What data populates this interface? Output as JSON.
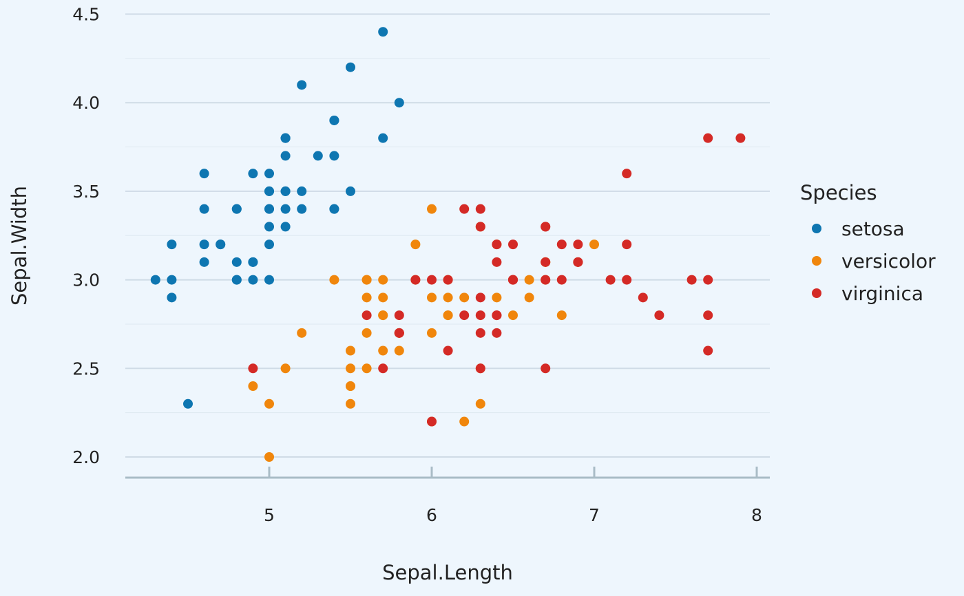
{
  "chart_data": {
    "type": "scatter",
    "xlabel": "Sepal.Length",
    "ylabel": "Sepal.Width",
    "xlim": [
      4.2,
      8.1
    ],
    "ylim": [
      1.9,
      4.6
    ],
    "xticks": [
      "5",
      "6",
      "7",
      "8"
    ],
    "yticks": [
      "2.0",
      "2.5",
      "3.0",
      "3.5",
      "4.0",
      "4.5"
    ],
    "grid": true,
    "legend": {
      "title": "Species",
      "position": "right"
    },
    "series": [
      {
        "name": "setosa",
        "color": "#0e76b1",
        "points": [
          [
            5.1,
            3.5
          ],
          [
            4.9,
            3.0
          ],
          [
            4.7,
            3.2
          ],
          [
            4.6,
            3.1
          ],
          [
            5.0,
            3.6
          ],
          [
            5.4,
            3.9
          ],
          [
            4.6,
            3.4
          ],
          [
            5.0,
            3.4
          ],
          [
            4.4,
            2.9
          ],
          [
            4.9,
            3.1
          ],
          [
            5.4,
            3.7
          ],
          [
            4.8,
            3.4
          ],
          [
            4.8,
            3.0
          ],
          [
            4.3,
            3.0
          ],
          [
            5.8,
            4.0
          ],
          [
            5.7,
            4.4
          ],
          [
            5.4,
            3.9
          ],
          [
            5.1,
            3.5
          ],
          [
            5.7,
            3.8
          ],
          [
            5.1,
            3.8
          ],
          [
            5.4,
            3.4
          ],
          [
            5.1,
            3.7
          ],
          [
            4.6,
            3.6
          ],
          [
            5.1,
            3.3
          ],
          [
            4.8,
            3.4
          ],
          [
            5.0,
            3.0
          ],
          [
            5.0,
            3.4
          ],
          [
            5.2,
            3.5
          ],
          [
            5.2,
            3.4
          ],
          [
            4.7,
            3.2
          ],
          [
            4.8,
            3.1
          ],
          [
            5.4,
            3.4
          ],
          [
            5.2,
            4.1
          ],
          [
            5.5,
            4.2
          ],
          [
            4.9,
            3.1
          ],
          [
            5.0,
            3.2
          ],
          [
            5.5,
            3.5
          ],
          [
            4.9,
            3.6
          ],
          [
            4.4,
            3.0
          ],
          [
            5.1,
            3.4
          ],
          [
            5.0,
            3.5
          ],
          [
            4.5,
            2.3
          ],
          [
            4.4,
            3.2
          ],
          [
            5.0,
            3.5
          ],
          [
            5.1,
            3.8
          ],
          [
            4.8,
            3.0
          ],
          [
            5.1,
            3.8
          ],
          [
            4.6,
            3.2
          ],
          [
            5.3,
            3.7
          ],
          [
            5.0,
            3.3
          ]
        ]
      },
      {
        "name": "versicolor",
        "color": "#f0860c",
        "points": [
          [
            7.0,
            3.2
          ],
          [
            6.4,
            3.2
          ],
          [
            6.9,
            3.1
          ],
          [
            5.5,
            2.3
          ],
          [
            6.5,
            2.8
          ],
          [
            5.7,
            2.8
          ],
          [
            6.3,
            3.3
          ],
          [
            4.9,
            2.4
          ],
          [
            6.6,
            2.9
          ],
          [
            5.2,
            2.7
          ],
          [
            5.0,
            2.0
          ],
          [
            5.9,
            3.0
          ],
          [
            6.0,
            2.2
          ],
          [
            6.1,
            2.9
          ],
          [
            5.6,
            2.9
          ],
          [
            6.7,
            3.1
          ],
          [
            5.6,
            3.0
          ],
          [
            5.8,
            2.7
          ],
          [
            6.2,
            2.2
          ],
          [
            5.6,
            2.5
          ],
          [
            5.9,
            3.2
          ],
          [
            6.1,
            2.8
          ],
          [
            6.3,
            2.5
          ],
          [
            6.1,
            2.8
          ],
          [
            6.4,
            2.9
          ],
          [
            6.6,
            3.0
          ],
          [
            6.8,
            2.8
          ],
          [
            6.7,
            3.0
          ],
          [
            6.0,
            2.9
          ],
          [
            5.7,
            2.6
          ],
          [
            5.5,
            2.4
          ],
          [
            5.5,
            2.4
          ],
          [
            5.8,
            2.7
          ],
          [
            6.0,
            2.7
          ],
          [
            5.4,
            3.0
          ],
          [
            6.0,
            3.4
          ],
          [
            6.7,
            3.1
          ],
          [
            6.3,
            2.3
          ],
          [
            5.6,
            3.0
          ],
          [
            5.5,
            2.5
          ],
          [
            5.5,
            2.6
          ],
          [
            6.1,
            3.0
          ],
          [
            5.8,
            2.6
          ],
          [
            5.0,
            2.3
          ],
          [
            5.6,
            2.7
          ],
          [
            5.7,
            3.0
          ],
          [
            5.7,
            2.9
          ],
          [
            6.2,
            2.9
          ],
          [
            5.1,
            2.5
          ],
          [
            5.7,
            2.8
          ]
        ]
      },
      {
        "name": "virginica",
        "color": "#d42a26",
        "points": [
          [
            6.3,
            3.3
          ],
          [
            5.8,
            2.7
          ],
          [
            7.1,
            3.0
          ],
          [
            6.3,
            2.9
          ],
          [
            6.5,
            3.0
          ],
          [
            7.6,
            3.0
          ],
          [
            4.9,
            2.5
          ],
          [
            7.3,
            2.9
          ],
          [
            6.7,
            2.5
          ],
          [
            7.2,
            3.6
          ],
          [
            6.5,
            3.2
          ],
          [
            6.4,
            2.7
          ],
          [
            6.8,
            3.0
          ],
          [
            5.7,
            2.5
          ],
          [
            5.8,
            2.8
          ],
          [
            6.4,
            3.2
          ],
          [
            6.5,
            3.0
          ],
          [
            7.7,
            3.8
          ],
          [
            7.7,
            2.6
          ],
          [
            6.0,
            2.2
          ],
          [
            6.9,
            3.2
          ],
          [
            5.6,
            2.8
          ],
          [
            7.7,
            2.8
          ],
          [
            6.3,
            2.7
          ],
          [
            6.7,
            3.3
          ],
          [
            7.2,
            3.2
          ],
          [
            6.2,
            2.8
          ],
          [
            6.1,
            3.0
          ],
          [
            6.4,
            2.8
          ],
          [
            7.2,
            3.0
          ],
          [
            7.4,
            2.8
          ],
          [
            7.9,
            3.8
          ],
          [
            6.4,
            2.8
          ],
          [
            6.3,
            2.8
          ],
          [
            6.1,
            2.6
          ],
          [
            7.7,
            3.0
          ],
          [
            6.3,
            3.4
          ],
          [
            6.4,
            3.1
          ],
          [
            6.0,
            3.0
          ],
          [
            6.9,
            3.1
          ],
          [
            6.7,
            3.1
          ],
          [
            6.9,
            3.1
          ],
          [
            5.8,
            2.7
          ],
          [
            6.8,
            3.2
          ],
          [
            6.7,
            3.3
          ],
          [
            6.7,
            3.0
          ],
          [
            6.3,
            2.5
          ],
          [
            6.5,
            3.0
          ],
          [
            6.2,
            3.4
          ],
          [
            5.9,
            3.0
          ]
        ]
      }
    ]
  }
}
